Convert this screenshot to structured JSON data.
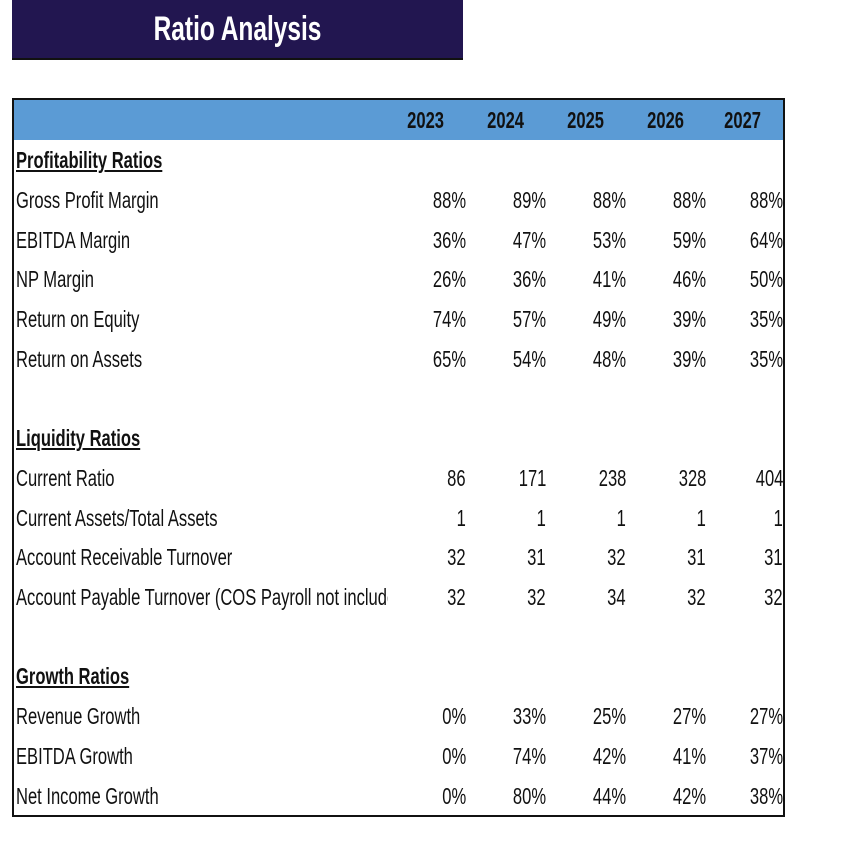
{
  "title": "Ratio Analysis",
  "colors": {
    "title_bg": "#221650",
    "header_bg": "#5b9bd5"
  },
  "years": [
    "2023",
    "2024",
    "2025",
    "2026",
    "2027"
  ],
  "rows": [
    {
      "type": "section",
      "label": "Profitability Ratios"
    },
    {
      "type": "data",
      "label": "Gross Profit Margin",
      "values": [
        "88%",
        "89%",
        "88%",
        "88%",
        "88%"
      ]
    },
    {
      "type": "data",
      "label": "EBITDA Margin",
      "values": [
        "36%",
        "47%",
        "53%",
        "59%",
        "64%"
      ]
    },
    {
      "type": "data",
      "label": "NP Margin",
      "values": [
        "26%",
        "36%",
        "41%",
        "46%",
        "50%"
      ]
    },
    {
      "type": "data",
      "label": "Return on Equity",
      "values": [
        "74%",
        "57%",
        "49%",
        "39%",
        "35%"
      ]
    },
    {
      "type": "data",
      "label": "Return on Assets",
      "values": [
        "65%",
        "54%",
        "48%",
        "39%",
        "35%"
      ]
    },
    {
      "type": "blank"
    },
    {
      "type": "section",
      "label": "Liquidity Ratios"
    },
    {
      "type": "data",
      "label": "Current Ratio",
      "values": [
        "86",
        "171",
        "238",
        "328",
        "404"
      ]
    },
    {
      "type": "data",
      "label": "Current Assets/Total Assets",
      "values": [
        "1",
        "1",
        "1",
        "1",
        "1"
      ]
    },
    {
      "type": "data",
      "label": "Account Receivable Turnover",
      "values": [
        "32",
        "31",
        "32",
        "31",
        "31"
      ]
    },
    {
      "type": "data",
      "label": "Account Payable Turnover (COS Payroll not includec",
      "values": [
        "32",
        "32",
        "34",
        "32",
        "32"
      ]
    },
    {
      "type": "blank"
    },
    {
      "type": "section",
      "label": "Growth Ratios"
    },
    {
      "type": "data",
      "label": "Revenue Growth",
      "values": [
        "0%",
        "33%",
        "25%",
        "27%",
        "27%"
      ]
    },
    {
      "type": "data",
      "label": "EBITDA Growth",
      "values": [
        "0%",
        "74%",
        "42%",
        "41%",
        "37%"
      ]
    },
    {
      "type": "data",
      "label": "Net Income Growth",
      "values": [
        "0%",
        "80%",
        "44%",
        "42%",
        "38%"
      ]
    }
  ]
}
